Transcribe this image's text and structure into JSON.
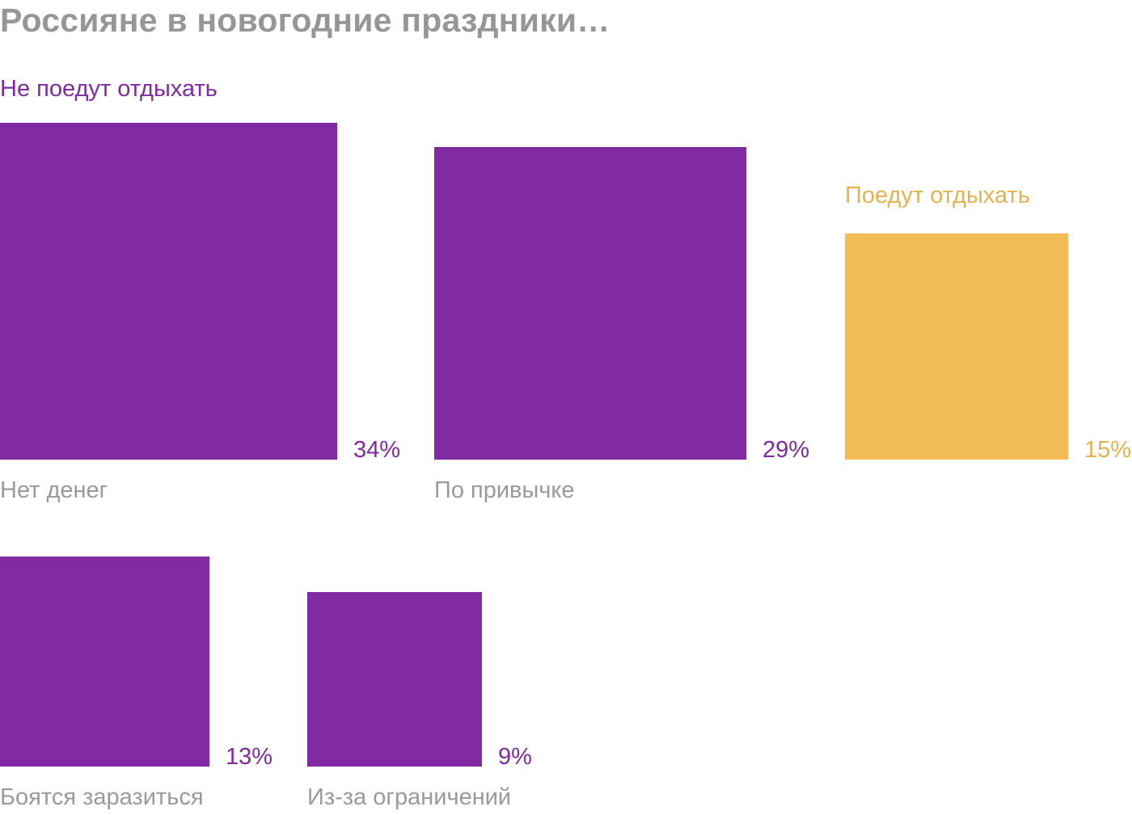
{
  "chart_data": {
    "type": "bar",
    "title": "Россияне в новогодние праздники…",
    "unit": "%",
    "groups": [
      {
        "id": "stay",
        "label": "Не поедут отдыхать",
        "color": "#812ba3"
      },
      {
        "id": "go",
        "label": "Поедут отдыхать",
        "color": "#f2bd56",
        "label_color": "#e3b34d"
      }
    ],
    "items": [
      {
        "category": "Нет денег",
        "value": 34,
        "value_label": "34%",
        "group": "stay"
      },
      {
        "category": "По привычке",
        "value": 29,
        "value_label": "29%",
        "group": "stay"
      },
      {
        "category": "",
        "value": 15,
        "value_label": "15%",
        "group": "go"
      },
      {
        "category": "Боятся заразиться",
        "value": 13,
        "value_label": "13%",
        "group": "stay"
      },
      {
        "category": "Из-за ограничений",
        "value": 9,
        "value_label": "9%",
        "group": "stay"
      }
    ],
    "encoding": "square area proportional to value",
    "legend": "group labels above bars",
    "grid": false
  }
}
